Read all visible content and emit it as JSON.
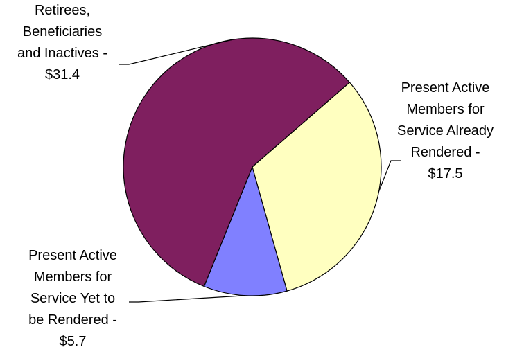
{
  "chart_data": {
    "type": "pie",
    "slices": [
      {
        "label_lines": [
          "Retirees,",
          "Beneficiaries",
          "and Inactives -",
          "$31.4"
        ],
        "value": 31.4,
        "color": "#7f1f5f"
      },
      {
        "label_lines": [
          "Present Active",
          "Members for",
          "Service Already",
          "Rendered -",
          "$17.5"
        ],
        "value": 17.5,
        "color": "#ffffc0"
      },
      {
        "label_lines": [
          "Present Active",
          "Members for",
          "Service Yet to",
          "be Rendered -",
          "$5.7"
        ],
        "value": 5.7,
        "color": "#8080ff"
      }
    ],
    "title": "",
    "legend": "none",
    "labels": "outside with leader lines"
  }
}
